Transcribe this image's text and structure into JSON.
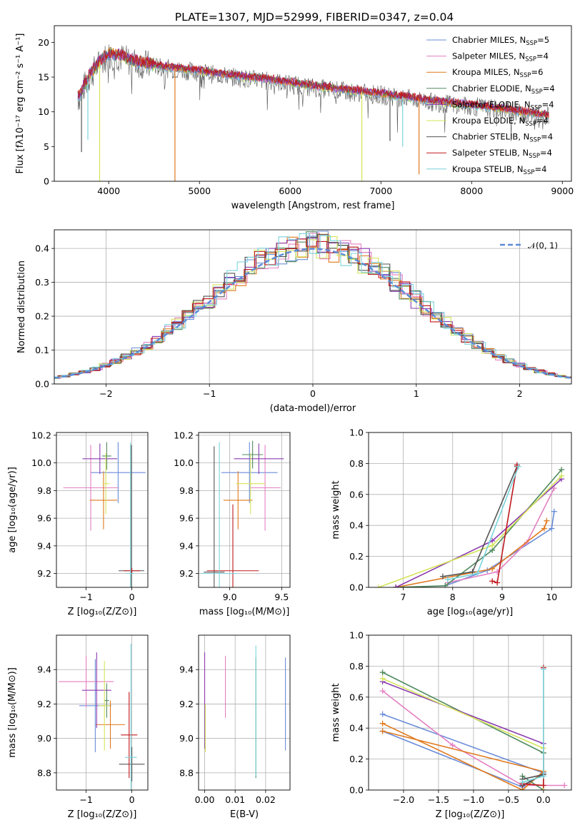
{
  "figure_title": "PLATE=1307, MJD=52999, FIBERID=0347, z=0.04",
  "palette": [
    "#6a8cd8",
    "#e47fc2",
    "#e07a1f",
    "#508a5e",
    "#8b3bb0",
    "#d4e45a",
    "#555555",
    "#c0181c",
    "#79d3dc"
  ],
  "legend": [
    {
      "label": "Chabrier MILES, N",
      "sub": "SSP",
      "tail": "=5",
      "color": "#6a8cd8"
    },
    {
      "label": "Salpeter MILES, N",
      "sub": "SSP",
      "tail": "=4",
      "color": "#e47fc2"
    },
    {
      "label": "Kroupa MILES, N",
      "sub": "SSP",
      "tail": "=6",
      "color": "#e07a1f"
    },
    {
      "label": "Chabrier ELODIE, N",
      "sub": "SSP",
      "tail": "=4",
      "color": "#508a5e"
    },
    {
      "label": "Salpeter ELODIE, N",
      "sub": "SSP",
      "tail": "=4",
      "color": "#8b3bb0"
    },
    {
      "label": "Kroupa ELODIE, N",
      "sub": "SSP",
      "tail": "=4",
      "color": "#d4e45a"
    },
    {
      "label": "Chabrier STELIB, N",
      "sub": "SSP",
      "tail": "=4",
      "color": "#555555"
    },
    {
      "label": "Salpeter STELIB, N",
      "sub": "SSP",
      "tail": "=4",
      "color": "#c0181c"
    },
    {
      "label": "Kroupa STELIB, N",
      "sub": "SSP",
      "tail": "=4",
      "color": "#79d3dc"
    }
  ],
  "chart_data": [
    {
      "id": "spectrum",
      "type": "line",
      "xlabel": "wavelength [Angstrom, rest frame]",
      "ylabel": "Flux [fλ10⁻¹⁷ erg cm⁻² s⁻¹ A⁻¹]",
      "xlim": [
        3400,
        9100
      ],
      "ylim": [
        0,
        22.4
      ],
      "xticks": [
        4000,
        5000,
        6000,
        7000,
        8000,
        9000
      ],
      "yticks": [
        0,
        5,
        10,
        15,
        20
      ],
      "continuum": [
        [
          3660,
          12.0
        ],
        [
          3720,
          13.5
        ],
        [
          3800,
          15.5
        ],
        [
          3900,
          17.2
        ],
        [
          4000,
          18.4
        ],
        [
          4100,
          18.2
        ],
        [
          4200,
          17.6
        ],
        [
          4400,
          17.0
        ],
        [
          4600,
          16.5
        ],
        [
          4800,
          16.2
        ],
        [
          5000,
          15.9
        ],
        [
          5200,
          15.5
        ],
        [
          5500,
          15.0
        ],
        [
          5800,
          14.6
        ],
        [
          6000,
          14.2
        ],
        [
          6200,
          13.8
        ],
        [
          6500,
          13.3
        ],
        [
          6800,
          12.9
        ],
        [
          7000,
          12.6
        ],
        [
          7300,
          12.1
        ],
        [
          7500,
          11.7
        ],
        [
          7800,
          11.2
        ],
        [
          8000,
          11.0
        ],
        [
          8300,
          10.5
        ],
        [
          8600,
          9.9
        ],
        [
          8850,
          9.5
        ]
      ],
      "drops": [
        {
          "x": 3900,
          "y": 0,
          "color": "#d4e45a"
        },
        {
          "x": 4730,
          "y": 0,
          "color": "#e07a1f"
        },
        {
          "x": 6790,
          "y": 0,
          "color": "#d4e45a"
        },
        {
          "x": 3700,
          "y": 4.2,
          "color": "#555555"
        },
        {
          "x": 3770,
          "y": 6.0,
          "color": "#79d3dc"
        },
        {
          "x": 7100,
          "y": 5.8,
          "color": "#555555"
        },
        {
          "x": 7420,
          "y": 1.0,
          "color": "#e07a1f"
        },
        {
          "x": 7240,
          "y": 5.0,
          "color": "#79d3dc"
        }
      ]
    },
    {
      "id": "residuals",
      "type": "line",
      "xlabel": "(data-model)/error",
      "ylabel": "Normed distribution",
      "xlim": [
        -2.5,
        2.5
      ],
      "ylim": [
        0,
        0.455
      ],
      "xticks": [
        -2,
        -1,
        0,
        1,
        2
      ],
      "yticks": [
        0.0,
        0.1,
        0.2,
        0.3,
        0.4
      ],
      "legend": "𝒩(0, 1)",
      "gaussian": {
        "mu": 0,
        "sigma": 1
      }
    },
    {
      "id": "age_vs_Z",
      "type": "scatter",
      "xlabel": "Z [log₁₀(Z/Z⊙)]",
      "ylabel": "age  [log₁₀(age/yr)]",
      "xlim": [
        -1.65,
        0.35
      ],
      "ylim": [
        9.1,
        10.22
      ],
      "xticks": [
        -1,
        0
      ],
      "yticks": [
        9.2,
        9.4,
        9.6,
        9.8,
        10.0,
        10.2
      ],
      "points": [
        {
          "x": -0.3,
          "y": 9.93,
          "xe": 0.6,
          "ye": 0.22,
          "c": 0
        },
        {
          "x": -0.9,
          "y": 9.82,
          "xe": 0.6,
          "ye": 0.31,
          "c": 1
        },
        {
          "x": -0.62,
          "y": 9.73,
          "xe": 0.3,
          "ye": 0.21,
          "c": 2
        },
        {
          "x": -0.55,
          "y": 10.05,
          "xe": 0.1,
          "ye": 0.1,
          "c": 3
        },
        {
          "x": -0.7,
          "y": 10.03,
          "xe": 0.38,
          "ye": 0.11,
          "c": 4
        },
        {
          "x": -0.57,
          "y": 9.85,
          "xe": 0.08,
          "ye": 0.22,
          "c": 5
        },
        {
          "x": -0.01,
          "y": 9.22,
          "xe": 0.28,
          "ye": 0.91,
          "c": 6
        },
        {
          "x": 0.0,
          "y": 9.22,
          "xe": 0.18,
          "ye": 0.02,
          "c": 7
        },
        {
          "x": -0.03,
          "y": 9.2,
          "xe": 0.08,
          "ye": 0.95,
          "c": 8
        }
      ]
    },
    {
      "id": "age_vs_mass",
      "type": "scatter",
      "xlabel": "mass [log₁₀(M/M⊙)]",
      "ylabel": "",
      "xlim": [
        8.7,
        9.58
      ],
      "ylim": [
        9.1,
        10.22
      ],
      "xticks": [
        9.0,
        9.5
      ],
      "yticks": [
        9.2,
        9.4,
        9.6,
        9.8,
        10.0,
        10.2
      ],
      "points": [
        {
          "x": 9.19,
          "y": 9.93,
          "xe": 0.27,
          "ye": 0.22,
          "c": 0
        },
        {
          "x": 9.34,
          "y": 9.82,
          "xe": 0.15,
          "ye": 0.31,
          "c": 1
        },
        {
          "x": 9.08,
          "y": 9.73,
          "xe": 0.14,
          "ye": 0.21,
          "c": 2
        },
        {
          "x": 9.22,
          "y": 10.06,
          "xe": 0.1,
          "ye": 0.1,
          "c": 3
        },
        {
          "x": 9.28,
          "y": 10.03,
          "xe": 0.24,
          "ye": 0.11,
          "c": 4
        },
        {
          "x": 9.2,
          "y": 9.85,
          "xe": 0.14,
          "ye": 0.22,
          "c": 5
        },
        {
          "x": 8.85,
          "y": 9.21,
          "xe": 0.1,
          "ye": 0.91,
          "c": 6
        },
        {
          "x": 9.03,
          "y": 9.22,
          "xe": 0.25,
          "ye": 0.48,
          "c": 7
        },
        {
          "x": 8.9,
          "y": 9.2,
          "xe": 0.18,
          "ye": 0.95,
          "c": 8
        }
      ]
    },
    {
      "id": "weight_vs_age",
      "type": "line",
      "xlabel": "age  [log₁₀(age/yr)]",
      "ylabel": "mass weight",
      "xlim": [
        6.3,
        10.4
      ],
      "ylim": [
        0,
        1.0
      ],
      "xticks": [
        7,
        8,
        9,
        10
      ],
      "yticks": [
        0.0,
        0.2,
        0.4,
        0.6,
        0.8,
        1.0
      ],
      "series": [
        {
          "c": 0,
          "x": [
            7.85,
            8.7,
            10.0,
            10.05
          ],
          "y": [
            0.01,
            0.11,
            0.38,
            0.49
          ]
        },
        {
          "c": 1,
          "x": [
            7.9,
            8.9,
            9.5,
            10.05
          ],
          "y": [
            0.03,
            0.1,
            0.29,
            0.64
          ]
        },
        {
          "c": 2,
          "x": [
            6.85,
            8.8,
            9.85,
            9.9
          ],
          "y": [
            0.0,
            0.12,
            0.38,
            0.43
          ]
        },
        {
          "c": 3,
          "x": [
            6.85,
            7.85,
            8.8,
            10.2
          ],
          "y": [
            0.0,
            0.01,
            0.24,
            0.76
          ]
        },
        {
          "c": 4,
          "x": [
            6.85,
            8.8,
            10.2
          ],
          "y": [
            0.0,
            0.3,
            0.7
          ]
        },
        {
          "c": 5,
          "x": [
            6.5,
            8.8,
            10.2
          ],
          "y": [
            0.0,
            0.27,
            0.72
          ]
        },
        {
          "c": 6,
          "x": [
            7.8,
            8.4,
            9.3
          ],
          "y": [
            0.07,
            0.1,
            0.78
          ]
        },
        {
          "c": 7,
          "x": [
            8.8,
            8.9,
            9.3
          ],
          "y": [
            0.04,
            0.03,
            0.79
          ]
        },
        {
          "c": 8,
          "x": [
            7.9,
            8.5,
            9.33
          ],
          "y": [
            0.05,
            0.09,
            0.78
          ]
        }
      ]
    },
    {
      "id": "mass_vs_Z",
      "type": "scatter",
      "xlabel": "Z [log₁₀(Z/Z⊙)]",
      "ylabel": "mass [log₁₀(M/M⊙)]",
      "xlim": [
        -1.65,
        0.35
      ],
      "ylim": [
        8.7,
        9.6
      ],
      "xticks": [
        -1,
        0
      ],
      "yticks": [
        8.8,
        9.0,
        9.2,
        9.4
      ],
      "points": [
        {
          "x": -0.8,
          "y": 9.19,
          "xe": 0.35,
          "ye": 0.27,
          "c": 0
        },
        {
          "x": -1.0,
          "y": 9.33,
          "xe": 0.6,
          "ye": 0.15,
          "c": 1
        },
        {
          "x": -0.47,
          "y": 9.08,
          "xe": 0.32,
          "ye": 0.14,
          "c": 2
        },
        {
          "x": -0.55,
          "y": 9.22,
          "xe": 0.05,
          "ye": 0.1,
          "c": 3
        },
        {
          "x": -0.77,
          "y": 9.28,
          "xe": 0.32,
          "ye": 0.22,
          "c": 4
        },
        {
          "x": -0.6,
          "y": 9.19,
          "xe": 0.12,
          "ye": 0.26,
          "c": 5
        },
        {
          "x": 0.0,
          "y": 8.85,
          "xe": 0.28,
          "ye": 0.1,
          "c": 6
        },
        {
          "x": -0.06,
          "y": 9.02,
          "xe": 0.18,
          "ye": 0.25,
          "c": 7
        },
        {
          "x": -0.02,
          "y": 8.89,
          "xe": 0.13,
          "ye": 0.66,
          "c": 8
        }
      ]
    },
    {
      "id": "mass_vs_ebv",
      "type": "scatter",
      "xlabel": "E(B-V)",
      "ylabel": "",
      "xlim": [
        -0.002,
        0.028
      ],
      "ylim": [
        8.7,
        9.6
      ],
      "xticks": [
        0.0,
        0.01,
        0.02
      ],
      "yticks": [
        8.8,
        9.0,
        9.2,
        9.4
      ],
      "points": [
        {
          "x": 0.0265,
          "y": 9.2,
          "xe": 0,
          "ye": 0.27,
          "c": 0
        },
        {
          "x": 0.0068,
          "y": 9.3,
          "xe": 0,
          "ye": 0.18,
          "c": 1
        },
        {
          "x": 0.0,
          "y": 9.22,
          "xe": 0,
          "ye": 0.28,
          "c": 4
        },
        {
          "x": 0.0002,
          "y": 9.06,
          "xe": 0,
          "ye": 0.14,
          "c": 5
        },
        {
          "x": 0.0168,
          "y": 9.12,
          "xe": 0,
          "ye": 0.35,
          "c": 3
        },
        {
          "x": 0.0168,
          "y": 9.16,
          "xe": 0,
          "ye": 0.38,
          "c": 8
        }
      ]
    },
    {
      "id": "weight_vs_Z",
      "type": "line",
      "xlabel": "Z [log₁₀(Z/Z⊙)]",
      "ylabel": "mass weight",
      "xlim": [
        -2.5,
        0.4
      ],
      "ylim": [
        0,
        1.0
      ],
      "xticks": [
        -2.0,
        -1.5,
        -1.0,
        -0.5,
        0.0
      ],
      "yticks": [
        0.0,
        0.2,
        0.4,
        0.6,
        0.8,
        1.0
      ],
      "series": [
        {
          "c": 0,
          "x": [
            -2.3,
            -0.3,
            0.0,
            -2.3
          ],
          "y": [
            0.38,
            0.02,
            0.11,
            0.49
          ]
        },
        {
          "c": 1,
          "x": [
            -2.3,
            -1.3,
            -0.3,
            0.3
          ],
          "y": [
            0.64,
            0.29,
            0.03,
            0.03
          ]
        },
        {
          "c": 2,
          "x": [
            -2.3,
            -0.3,
            0.0,
            -2.3
          ],
          "y": [
            0.43,
            0.0,
            0.12,
            0.38
          ]
        },
        {
          "c": 3,
          "x": [
            -2.3,
            0.0,
            0.0,
            -0.3
          ],
          "y": [
            0.76,
            0.24,
            0.0,
            0.09
          ]
        },
        {
          "c": 4,
          "x": [
            -2.3,
            0.0,
            0.0
          ],
          "y": [
            0.7,
            0.3,
            0.0
          ]
        },
        {
          "c": 5,
          "x": [
            -2.3,
            0.0,
            0.0
          ],
          "y": [
            0.72,
            0.27,
            0.0
          ]
        },
        {
          "c": 6,
          "x": [
            -0.3,
            0.0,
            -0.3
          ],
          "y": [
            0.07,
            0.1,
            0.03
          ]
        },
        {
          "c": 7,
          "x": [
            -0.3,
            0.0,
            0.0
          ],
          "y": [
            0.04,
            0.03,
            0.79
          ]
        },
        {
          "c": 8,
          "x": [
            -0.3,
            0.0,
            0.0
          ],
          "y": [
            0.05,
            0.09,
            0.78
          ]
        }
      ]
    }
  ]
}
